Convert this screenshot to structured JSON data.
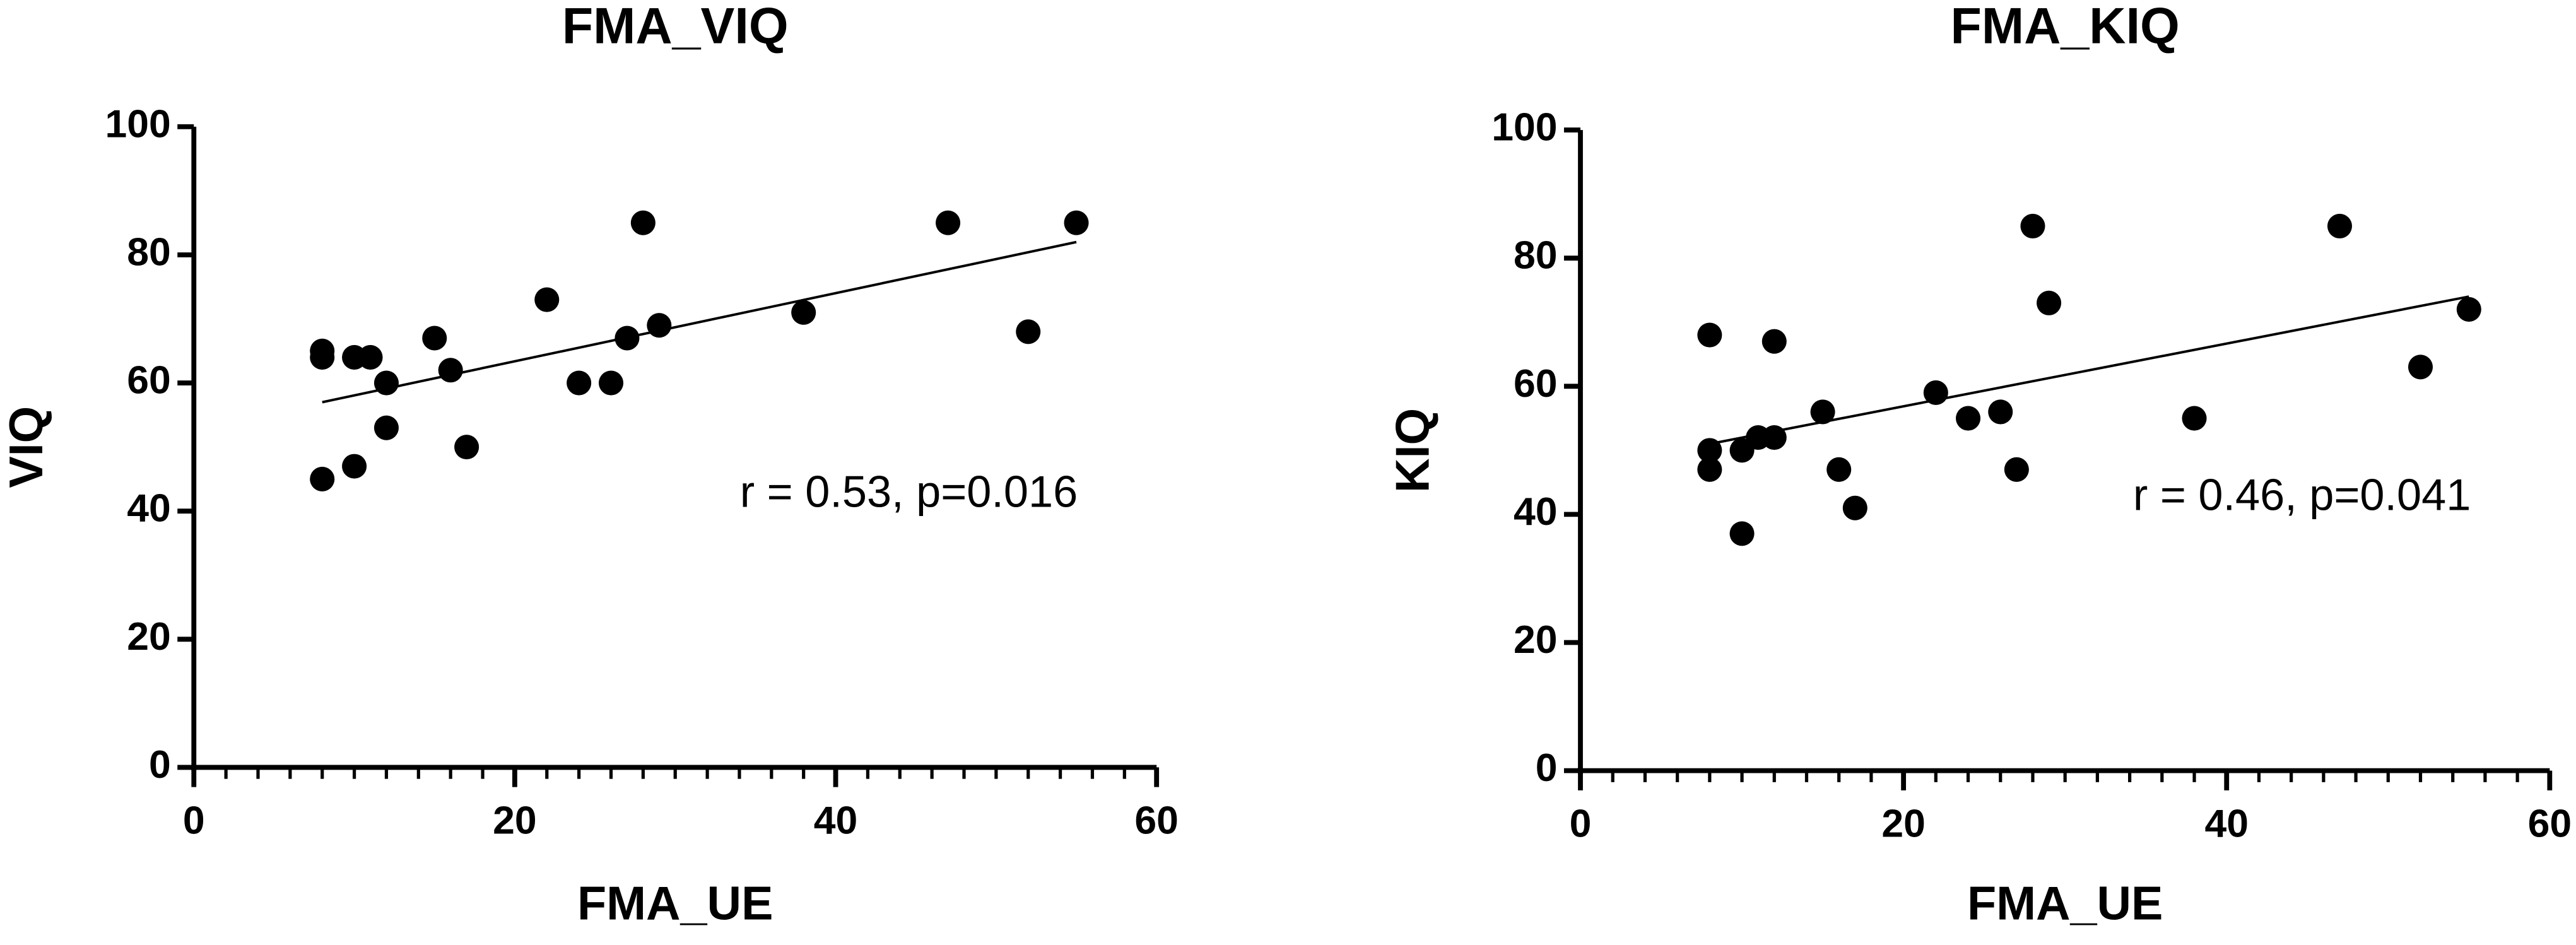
{
  "chart_data": [
    {
      "type": "scatter",
      "title": "FMA_VIQ",
      "x_label": "FMA_UE",
      "y_label": "VIQ",
      "annotation": "r = 0.53, p=0.016",
      "color": "#000000",
      "x": [
        8,
        8,
        8,
        10,
        11,
        12,
        12,
        10,
        15,
        16,
        17,
        22,
        24,
        26,
        27,
        28,
        29,
        38,
        47,
        52,
        55
      ],
      "values": [
        45,
        64,
        65,
        64,
        64,
        60,
        53,
        47,
        67,
        62,
        50,
        73,
        60,
        60,
        67,
        85,
        69,
        71,
        85,
        68,
        85
      ],
      "fit": {
        "x": [
          8,
          55
        ],
        "y": [
          57,
          82
        ]
      },
      "xlim": [
        0,
        60
      ],
      "xticks": [
        0,
        20,
        40,
        60
      ],
      "x_minor_ticks": [
        2,
        4,
        6,
        8,
        10,
        12,
        14,
        16,
        18,
        22,
        24,
        26,
        28,
        30,
        32,
        34,
        36,
        38,
        42,
        44,
        46,
        48,
        50,
        52,
        54,
        56,
        58
      ],
      "ylim": [
        0,
        100
      ],
      "yticks": [
        0,
        20,
        40,
        60,
        80,
        100
      ]
    },
    {
      "type": "scatter",
      "title": "FMA_KIQ",
      "x_label": "FMA_UE",
      "y_label": "KIQ",
      "annotation": "r = 0.46, p=0.041",
      "color": "#000000",
      "x": [
        8,
        8,
        8,
        10,
        10,
        11,
        12,
        12,
        15,
        16,
        17,
        22,
        24,
        26,
        27,
        28,
        29,
        38,
        47,
        52,
        55
      ],
      "values": [
        68,
        50,
        47,
        37,
        50,
        52,
        52,
        67,
        56,
        47,
        41,
        59,
        55,
        56,
        47,
        85,
        73,
        55,
        85,
        63,
        72
      ],
      "fit": {
        "x": [
          8,
          55
        ],
        "y": [
          51,
          74
        ]
      },
      "xlim": [
        0,
        60
      ],
      "xticks": [
        0,
        20,
        40,
        60
      ],
      "x_minor_ticks": [
        2,
        4,
        6,
        8,
        10,
        12,
        14,
        16,
        18,
        22,
        24,
        26,
        28,
        30,
        32,
        34,
        36,
        38,
        42,
        44,
        46,
        48,
        50,
        52,
        54,
        56,
        58
      ],
      "ylim": [
        0,
        100
      ],
      "yticks": [
        0,
        20,
        40,
        60,
        80,
        100
      ]
    }
  ]
}
